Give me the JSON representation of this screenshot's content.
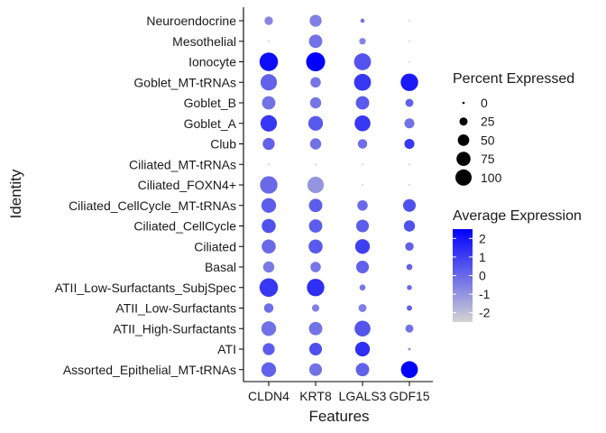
{
  "chart_data": {
    "type": "dotplot",
    "xlabel": "Features",
    "ylabel": "Identity",
    "features": [
      "CLDN4",
      "KRT8",
      "LGALS3",
      "GDF15"
    ],
    "identities": [
      "Neuroendocrine",
      "Mesothelial",
      "Ionocyte",
      "Goblet_MT-tRNAs",
      "Goblet_B",
      "Goblet_A",
      "Club",
      "Ciliated_MT-tRNAs",
      "Ciliated_FOXN4+",
      "Ciliated_CellCycle_MT-tRNAs",
      "Ciliated_CellCycle",
      "Ciliated",
      "Basal",
      "ATII_Low-Surfactants_SubjSpec",
      "ATII_Low-Surfactants",
      "ATII_High-Surfactants",
      "ATI",
      "Assorted_Epithelial_MT-tRNAs"
    ],
    "percent_expressed": [
      [
        20,
        40,
        5,
        1
      ],
      [
        1,
        50,
        12,
        1
      ],
      [
        95,
        100,
        80,
        1
      ],
      [
        75,
        30,
        80,
        85
      ],
      [
        50,
        35,
        50,
        18
      ],
      [
        75,
        60,
        70,
        28
      ],
      [
        40,
        35,
        25,
        28
      ],
      [
        1,
        1,
        1,
        1
      ],
      [
        85,
        75,
        1,
        1
      ],
      [
        60,
        50,
        30,
        45
      ],
      [
        55,
        50,
        45,
        35
      ],
      [
        55,
        55,
        60,
        20
      ],
      [
        35,
        30,
        45,
        10
      ],
      [
        95,
        85,
        10,
        7
      ],
      [
        25,
        15,
        18,
        8
      ],
      [
        60,
        50,
        70,
        18
      ],
      [
        40,
        45,
        60,
        2
      ],
      [
        60,
        45,
        50,
        80
      ]
    ],
    "average_expression": [
      [
        -0.7,
        -0.5,
        -0.3,
        -1.5
      ],
      [
        -1.5,
        -0.2,
        -0.6,
        -1.5
      ],
      [
        2.2,
        2.8,
        0.5,
        -1.5
      ],
      [
        0.2,
        -0.3,
        1.2,
        1.9
      ],
      [
        -0.2,
        -0.3,
        0.4,
        0.2
      ],
      [
        1.2,
        0.4,
        1.2,
        -0.2
      ],
      [
        0.2,
        -0.2,
        -0.1,
        1.2
      ],
      [
        -1.5,
        -1.5,
        -1.5,
        -1.5
      ],
      [
        0.0,
        -1.0,
        -1.5,
        -1.5
      ],
      [
        0.3,
        0.3,
        0.0,
        0.6
      ],
      [
        0.6,
        0.3,
        0.3,
        0.6
      ],
      [
        0.0,
        0.4,
        1.0,
        0.2
      ],
      [
        -0.4,
        -0.3,
        0.2,
        0.2
      ],
      [
        1.2,
        1.4,
        -0.3,
        0.0
      ],
      [
        -0.1,
        -0.5,
        -0.5,
        0.2
      ],
      [
        -0.2,
        -0.2,
        0.5,
        -0.2
      ],
      [
        0.3,
        0.6,
        1.4,
        -1.0
      ],
      [
        0.2,
        -0.2,
        0.2,
        2.9
      ]
    ],
    "size_legend": {
      "title": "Percent Expressed",
      "values": [
        0,
        25,
        50,
        75,
        100
      ],
      "labels": [
        "0",
        "25",
        "50",
        "75",
        "100"
      ]
    },
    "color_legend": {
      "title": "Average Expression",
      "range": [
        -2.5,
        2.5
      ],
      "ticks": [
        2,
        1,
        0,
        -1,
        -2
      ],
      "labels": [
        "2",
        "1",
        "0",
        "-1",
        "-2"
      ],
      "low_color": "#d3d3d3",
      "high_color": "#0000ff"
    },
    "grid": false
  }
}
